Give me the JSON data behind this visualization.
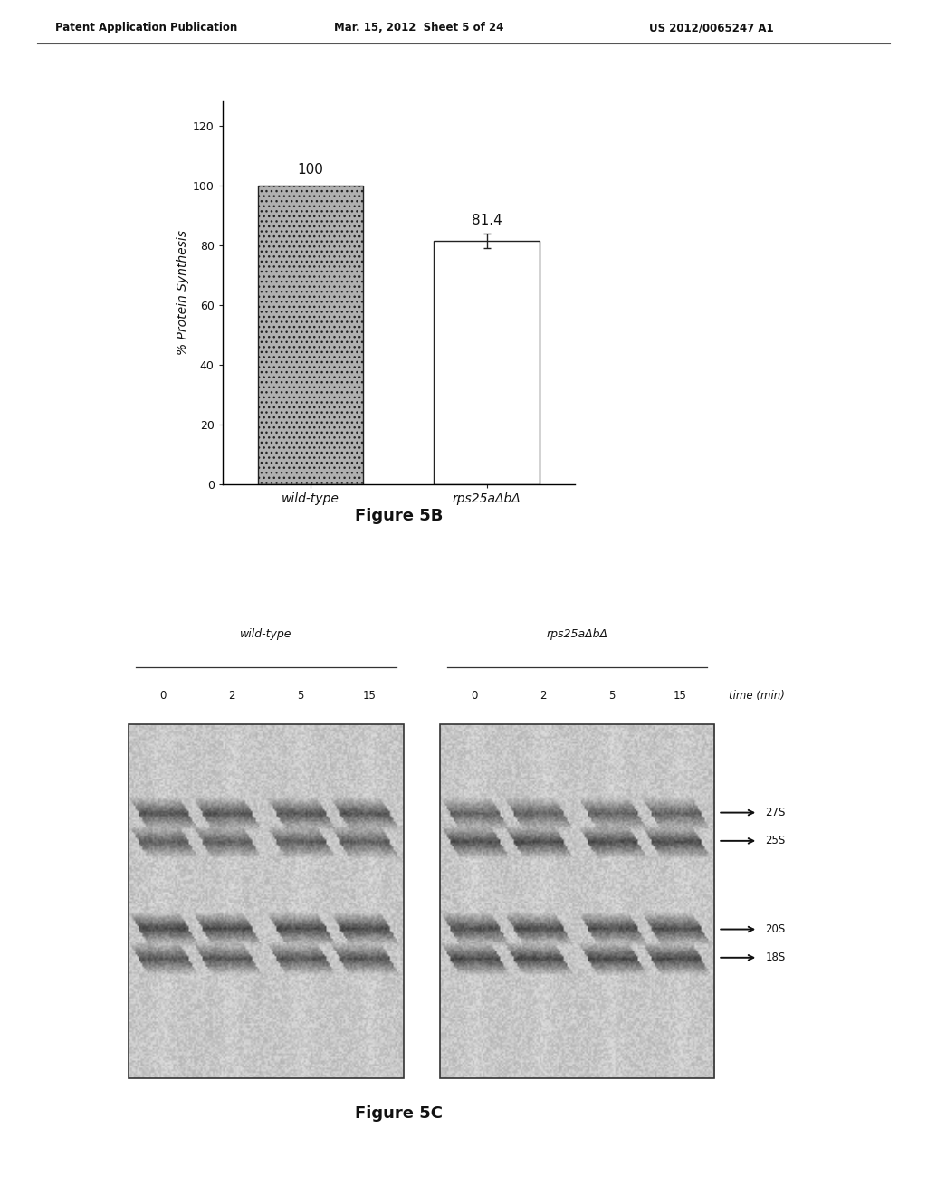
{
  "header_left": "Patent Application Publication",
  "header_mid": "Mar. 15, 2012  Sheet 5 of 24",
  "header_right": "US 2012/0065247 A1",
  "fig5b": {
    "categories": [
      "wild-type",
      "rps25aΔbΔ"
    ],
    "values": [
      100,
      81.4
    ],
    "bar_color_1": "#b0b0b0",
    "bar_color_2": "#ffffff",
    "bar_edgecolor": "#222222",
    "ylabel": "% Protein Synthesis",
    "yticks": [
      0,
      20,
      40,
      60,
      80,
      100,
      120
    ],
    "ylim": [
      0,
      128
    ],
    "value_labels": [
      "100",
      "81.4"
    ],
    "figure_label": "Figure 5B",
    "error_bar_second": 2.5
  },
  "fig5c": {
    "figure_label": "Figure 5C",
    "wt_label": "wild-type",
    "mut_label": "rps25aΔbΔ",
    "time_labels": [
      "0",
      "2",
      "5",
      "15",
      "0",
      "2",
      "5",
      "15"
    ],
    "time_unit": "time (min)",
    "band_labels": [
      "27S",
      "25S",
      "20S",
      "18S"
    ]
  },
  "background_color": "#ffffff",
  "text_color": "#111111"
}
